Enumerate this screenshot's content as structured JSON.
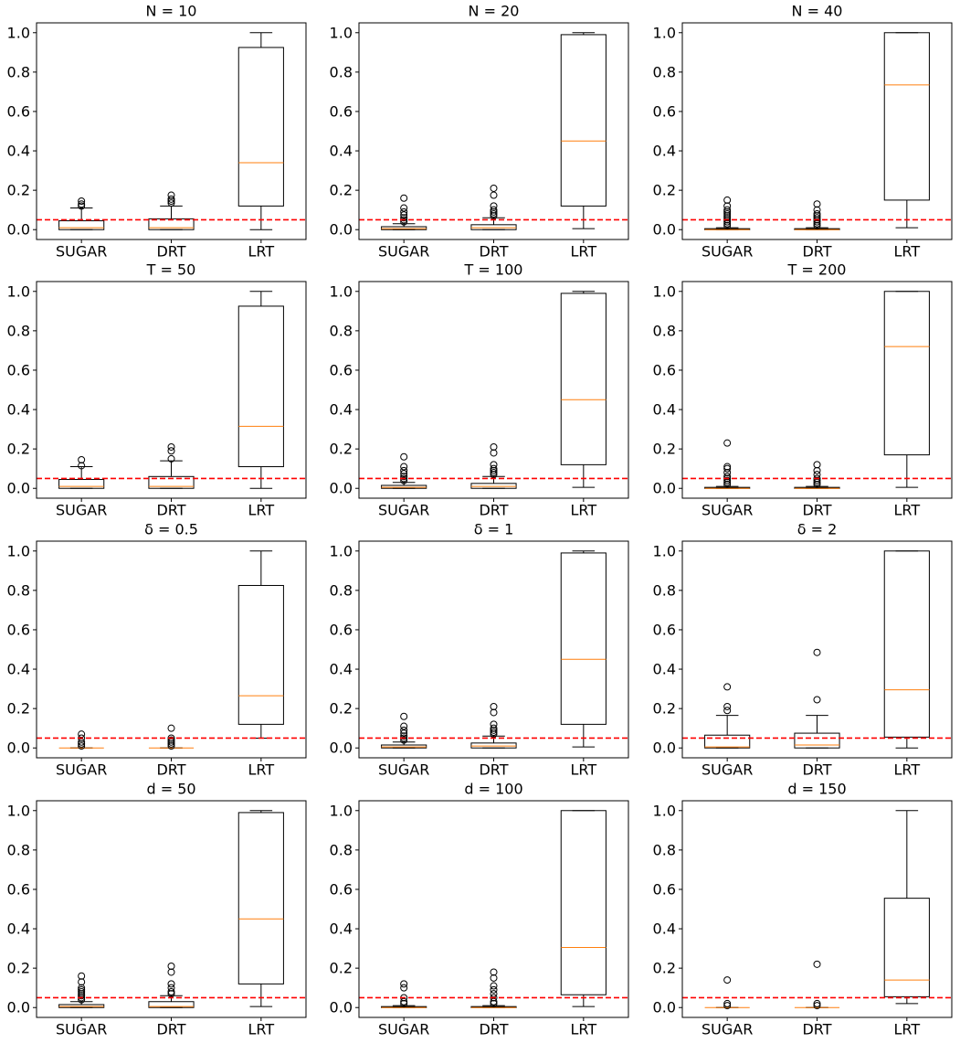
{
  "chart_data": [
    {
      "type": "box",
      "title": "N = 10",
      "categories": [
        "SUGAR",
        "DRT",
        "LRT"
      ],
      "ylim": [
        -0.05,
        1.05
      ],
      "yticks": [
        {
          "value": 0,
          "label": "0.0"
        },
        0.2,
        0.4,
        0.6,
        0.8,
        {
          "value": 1,
          "label": "1.0"
        }
      ],
      "hline": 0.05,
      "hline_color": "#ff0000",
      "box_color": "#000000",
      "median_color": "#ff7f0e",
      "boxes": [
        {
          "whislo": 0,
          "q1": 0,
          "med": 0.01,
          "q3": 0.045,
          "whishi": 0.11,
          "fliers": [
            0.12,
            0.13,
            0.145
          ]
        },
        {
          "whislo": 0,
          "q1": 0,
          "med": 0.01,
          "q3": 0.055,
          "whishi": 0.12,
          "fliers": [
            0.135,
            0.145,
            0.155,
            0.175
          ]
        },
        {
          "whislo": 0,
          "q1": 0.12,
          "med": 0.34,
          "q3": 0.925,
          "whishi": 1.0,
          "fliers": []
        }
      ]
    },
    {
      "type": "box",
      "title": "N = 20",
      "categories": [
        "SUGAR",
        "DRT",
        "LRT"
      ],
      "ylim": [
        -0.05,
        1.05
      ],
      "yticks": [
        {
          "value": 0,
          "label": "0.0"
        },
        0.2,
        0.4,
        0.6,
        0.8,
        {
          "value": 1,
          "label": "1.0"
        }
      ],
      "hline": 0.05,
      "hline_color": "#ff0000",
      "box_color": "#000000",
      "median_color": "#ff7f0e",
      "boxes": [
        {
          "whislo": 0,
          "q1": 0,
          "med": 0.005,
          "q3": 0.015,
          "whishi": 0.03,
          "fliers": [
            0.04,
            0.05,
            0.06,
            0.075,
            0.09,
            0.11,
            0.16
          ]
        },
        {
          "whislo": 0,
          "q1": 0,
          "med": 0.01,
          "q3": 0.025,
          "whishi": 0.06,
          "fliers": [
            0.07,
            0.08,
            0.09,
            0.1,
            0.12,
            0.175,
            0.21
          ]
        },
        {
          "whislo": 0.005,
          "q1": 0.12,
          "med": 0.45,
          "q3": 0.99,
          "whishi": 1.0,
          "fliers": []
        }
      ]
    },
    {
      "type": "box",
      "title": "N = 40",
      "categories": [
        "SUGAR",
        "DRT",
        "LRT"
      ],
      "ylim": [
        -0.05,
        1.05
      ],
      "yticks": [
        {
          "value": 0,
          "label": "0.0"
        },
        0.2,
        0.4,
        0.6,
        0.8,
        {
          "value": 1,
          "label": "1.0"
        }
      ],
      "hline": 0.05,
      "hline_color": "#ff0000",
      "box_color": "#000000",
      "median_color": "#ff7f0e",
      "boxes": [
        {
          "whislo": 0,
          "q1": 0,
          "med": 0,
          "q3": 0.005,
          "whishi": 0.01,
          "fliers": [
            0.02,
            0.03,
            0.04,
            0.05,
            0.06,
            0.07,
            0.08,
            0.09,
            0.1,
            0.12,
            0.15
          ]
        },
        {
          "whislo": 0,
          "q1": 0,
          "med": 0,
          "q3": 0.005,
          "whishi": 0.01,
          "fliers": [
            0.02,
            0.03,
            0.04,
            0.05,
            0.06,
            0.07,
            0.08,
            0.1,
            0.13
          ]
        },
        {
          "whislo": 0.01,
          "q1": 0.15,
          "med": 0.735,
          "q3": 1.0,
          "whishi": 1.0,
          "fliers": []
        }
      ]
    },
    {
      "type": "box",
      "title": "T = 50",
      "categories": [
        "SUGAR",
        "DRT",
        "LRT"
      ],
      "ylim": [
        -0.05,
        1.05
      ],
      "yticks": [
        {
          "value": 0,
          "label": "0.0"
        },
        0.2,
        0.4,
        0.6,
        0.8,
        {
          "value": 1,
          "label": "1.0"
        }
      ],
      "hline": 0.05,
      "hline_color": "#ff0000",
      "box_color": "#000000",
      "median_color": "#ff7f0e",
      "boxes": [
        {
          "whislo": 0,
          "q1": 0,
          "med": 0.01,
          "q3": 0.045,
          "whishi": 0.11,
          "fliers": [
            0.115,
            0.145
          ]
        },
        {
          "whislo": 0,
          "q1": 0,
          "med": 0.01,
          "q3": 0.06,
          "whishi": 0.14,
          "fliers": [
            0.15,
            0.19,
            0.21
          ]
        },
        {
          "whislo": 0,
          "q1": 0.11,
          "med": 0.315,
          "q3": 0.925,
          "whishi": 1.0,
          "fliers": []
        }
      ]
    },
    {
      "type": "box",
      "title": "T = 100",
      "categories": [
        "SUGAR",
        "DRT",
        "LRT"
      ],
      "ylim": [
        -0.05,
        1.05
      ],
      "yticks": [
        {
          "value": 0,
          "label": "0.0"
        },
        0.2,
        0.4,
        0.6,
        0.8,
        {
          "value": 1,
          "label": "1.0"
        }
      ],
      "hline": 0.05,
      "hline_color": "#ff0000",
      "box_color": "#000000",
      "median_color": "#ff7f0e",
      "boxes": [
        {
          "whislo": 0,
          "q1": 0,
          "med": 0.005,
          "q3": 0.015,
          "whishi": 0.03,
          "fliers": [
            0.04,
            0.05,
            0.06,
            0.075,
            0.09,
            0.11,
            0.16
          ]
        },
        {
          "whislo": 0,
          "q1": 0,
          "med": 0.01,
          "q3": 0.025,
          "whishi": 0.06,
          "fliers": [
            0.07,
            0.08,
            0.09,
            0.1,
            0.12,
            0.18,
            0.21
          ]
        },
        {
          "whislo": 0.005,
          "q1": 0.12,
          "med": 0.45,
          "q3": 0.99,
          "whishi": 1.0,
          "fliers": []
        }
      ]
    },
    {
      "type": "box",
      "title": "T = 200",
      "categories": [
        "SUGAR",
        "DRT",
        "LRT"
      ],
      "ylim": [
        -0.05,
        1.05
      ],
      "yticks": [
        {
          "value": 0,
          "label": "0.0"
        },
        0.2,
        0.4,
        0.6,
        0.8,
        {
          "value": 1,
          "label": "1.0"
        }
      ],
      "hline": 0.05,
      "hline_color": "#ff0000",
      "box_color": "#000000",
      "median_color": "#ff7f0e",
      "boxes": [
        {
          "whislo": 0,
          "q1": 0,
          "med": 0,
          "q3": 0.005,
          "whishi": 0.01,
          "fliers": [
            0.02,
            0.03,
            0.04,
            0.05,
            0.06,
            0.08,
            0.1,
            0.11,
            0.23
          ]
        },
        {
          "whislo": 0,
          "q1": 0,
          "med": 0,
          "q3": 0.005,
          "whishi": 0.01,
          "fliers": [
            0.02,
            0.03,
            0.04,
            0.05,
            0.07,
            0.09,
            0.12
          ]
        },
        {
          "whislo": 0.005,
          "q1": 0.17,
          "med": 0.72,
          "q3": 1.0,
          "whishi": 1.0,
          "fliers": []
        }
      ]
    },
    {
      "type": "box",
      "title": "δ = 0.5",
      "categories": [
        "SUGAR",
        "DRT",
        "LRT"
      ],
      "ylim": [
        -0.05,
        1.05
      ],
      "yticks": [
        {
          "value": 0,
          "label": "0.0"
        },
        0.2,
        0.4,
        0.6,
        0.8,
        {
          "value": 1,
          "label": "1.0"
        }
      ],
      "hline": 0.05,
      "hline_color": "#ff0000",
      "box_color": "#000000",
      "median_color": "#ff7f0e",
      "boxes": [
        {
          "whislo": 0,
          "q1": 0,
          "med": 0,
          "q3": 0,
          "whishi": 0,
          "fliers": [
            0.01,
            0.02,
            0.03,
            0.05,
            0.07
          ]
        },
        {
          "whislo": 0,
          "q1": 0,
          "med": 0,
          "q3": 0,
          "whishi": 0,
          "fliers": [
            0.01,
            0.02,
            0.03,
            0.04,
            0.05,
            0.1
          ]
        },
        {
          "whislo": 0.05,
          "q1": 0.12,
          "med": 0.265,
          "q3": 0.825,
          "whishi": 1.0,
          "fliers": []
        }
      ]
    },
    {
      "type": "box",
      "title": "δ = 1",
      "categories": [
        "SUGAR",
        "DRT",
        "LRT"
      ],
      "ylim": [
        -0.05,
        1.05
      ],
      "yticks": [
        {
          "value": 0,
          "label": "0.0"
        },
        0.2,
        0.4,
        0.6,
        0.8,
        {
          "value": 1,
          "label": "1.0"
        }
      ],
      "hline": 0.05,
      "hline_color": "#ff0000",
      "box_color": "#000000",
      "median_color": "#ff7f0e",
      "boxes": [
        {
          "whislo": 0,
          "q1": 0,
          "med": 0.005,
          "q3": 0.015,
          "whishi": 0.03,
          "fliers": [
            0.04,
            0.05,
            0.06,
            0.075,
            0.09,
            0.11,
            0.16
          ]
        },
        {
          "whislo": 0,
          "q1": 0,
          "med": 0.01,
          "q3": 0.025,
          "whishi": 0.06,
          "fliers": [
            0.07,
            0.08,
            0.09,
            0.1,
            0.12,
            0.18,
            0.21
          ]
        },
        {
          "whislo": 0.005,
          "q1": 0.12,
          "med": 0.45,
          "q3": 0.99,
          "whishi": 1.0,
          "fliers": []
        }
      ]
    },
    {
      "type": "box",
      "title": "δ = 2",
      "categories": [
        "SUGAR",
        "DRT",
        "LRT"
      ],
      "ylim": [
        -0.05,
        1.05
      ],
      "yticks": [
        {
          "value": 0,
          "label": "0.0"
        },
        0.2,
        0.4,
        0.6,
        0.8,
        {
          "value": 1,
          "label": "1.0"
        }
      ],
      "hline": 0.05,
      "hline_color": "#ff0000",
      "box_color": "#000000",
      "median_color": "#ff7f0e",
      "boxes": [
        {
          "whislo": 0,
          "q1": 0,
          "med": 0.005,
          "q3": 0.065,
          "whishi": 0.165,
          "fliers": [
            0.19,
            0.21,
            0.31
          ]
        },
        {
          "whislo": 0,
          "q1": 0,
          "med": 0.015,
          "q3": 0.075,
          "whishi": 0.165,
          "fliers": [
            0.245,
            0.485
          ]
        },
        {
          "whislo": 0,
          "q1": 0.055,
          "med": 0.295,
          "q3": 1.0,
          "whishi": 1.0,
          "fliers": []
        }
      ]
    },
    {
      "type": "box",
      "title": "d = 50",
      "categories": [
        "SUGAR",
        "DRT",
        "LRT"
      ],
      "ylim": [
        -0.05,
        1.05
      ],
      "yticks": [
        {
          "value": 0,
          "label": "0.0"
        },
        0.2,
        0.4,
        0.6,
        0.8,
        {
          "value": 1,
          "label": "1.0"
        }
      ],
      "hline": 0.05,
      "hline_color": "#ff0000",
      "box_color": "#000000",
      "median_color": "#ff7f0e",
      "boxes": [
        {
          "whislo": 0,
          "q1": 0,
          "med": 0.005,
          "q3": 0.015,
          "whishi": 0.03,
          "fliers": [
            0.04,
            0.05,
            0.06,
            0.07,
            0.08,
            0.09,
            0.1,
            0.13,
            0.16
          ]
        },
        {
          "whislo": 0,
          "q1": 0,
          "med": 0.005,
          "q3": 0.03,
          "whishi": 0.06,
          "fliers": [
            0.07,
            0.08,
            0.1,
            0.12,
            0.18,
            0.21
          ]
        },
        {
          "whislo": 0.005,
          "q1": 0.12,
          "med": 0.45,
          "q3": 0.99,
          "whishi": 1.0,
          "fliers": []
        }
      ]
    },
    {
      "type": "box",
      "title": "d = 100",
      "categories": [
        "SUGAR",
        "DRT",
        "LRT"
      ],
      "ylim": [
        -0.05,
        1.05
      ],
      "yticks": [
        {
          "value": 0,
          "label": "0.0"
        },
        0.2,
        0.4,
        0.6,
        0.8,
        {
          "value": 1,
          "label": "1.0"
        }
      ],
      "hline": 0.05,
      "hline_color": "#ff0000",
      "box_color": "#000000",
      "median_color": "#ff7f0e",
      "boxes": [
        {
          "whislo": 0,
          "q1": 0,
          "med": 0,
          "q3": 0.005,
          "whishi": 0.01,
          "fliers": [
            0.02,
            0.03,
            0.05,
            0.1,
            0.12
          ]
        },
        {
          "whislo": 0,
          "q1": 0,
          "med": 0,
          "q3": 0.005,
          "whishi": 0.01,
          "fliers": [
            0.02,
            0.03,
            0.05,
            0.07,
            0.09,
            0.11,
            0.15,
            0.18
          ]
        },
        {
          "whislo": 0.005,
          "q1": 0.065,
          "med": 0.305,
          "q3": 1.0,
          "whishi": 1.0,
          "fliers": []
        }
      ]
    },
    {
      "type": "box",
      "title": "d = 150",
      "categories": [
        "SUGAR",
        "DRT",
        "LRT"
      ],
      "ylim": [
        -0.05,
        1.05
      ],
      "yticks": [
        {
          "value": 0,
          "label": "0.0"
        },
        0.2,
        0.4,
        0.6,
        0.8,
        {
          "value": 1,
          "label": "1.0"
        }
      ],
      "hline": 0.05,
      "hline_color": "#ff0000",
      "box_color": "#000000",
      "median_color": "#ff7f0e",
      "boxes": [
        {
          "whislo": 0,
          "q1": 0,
          "med": 0,
          "q3": 0,
          "whishi": 0,
          "fliers": [
            0.01,
            0.02,
            0.14
          ]
        },
        {
          "whislo": 0,
          "q1": 0,
          "med": 0,
          "q3": 0,
          "whishi": 0,
          "fliers": [
            0.01,
            0.02,
            0.22
          ]
        },
        {
          "whislo": 0.02,
          "q1": 0.055,
          "med": 0.14,
          "q3": 0.555,
          "whishi": 1.0,
          "fliers": []
        }
      ]
    }
  ]
}
